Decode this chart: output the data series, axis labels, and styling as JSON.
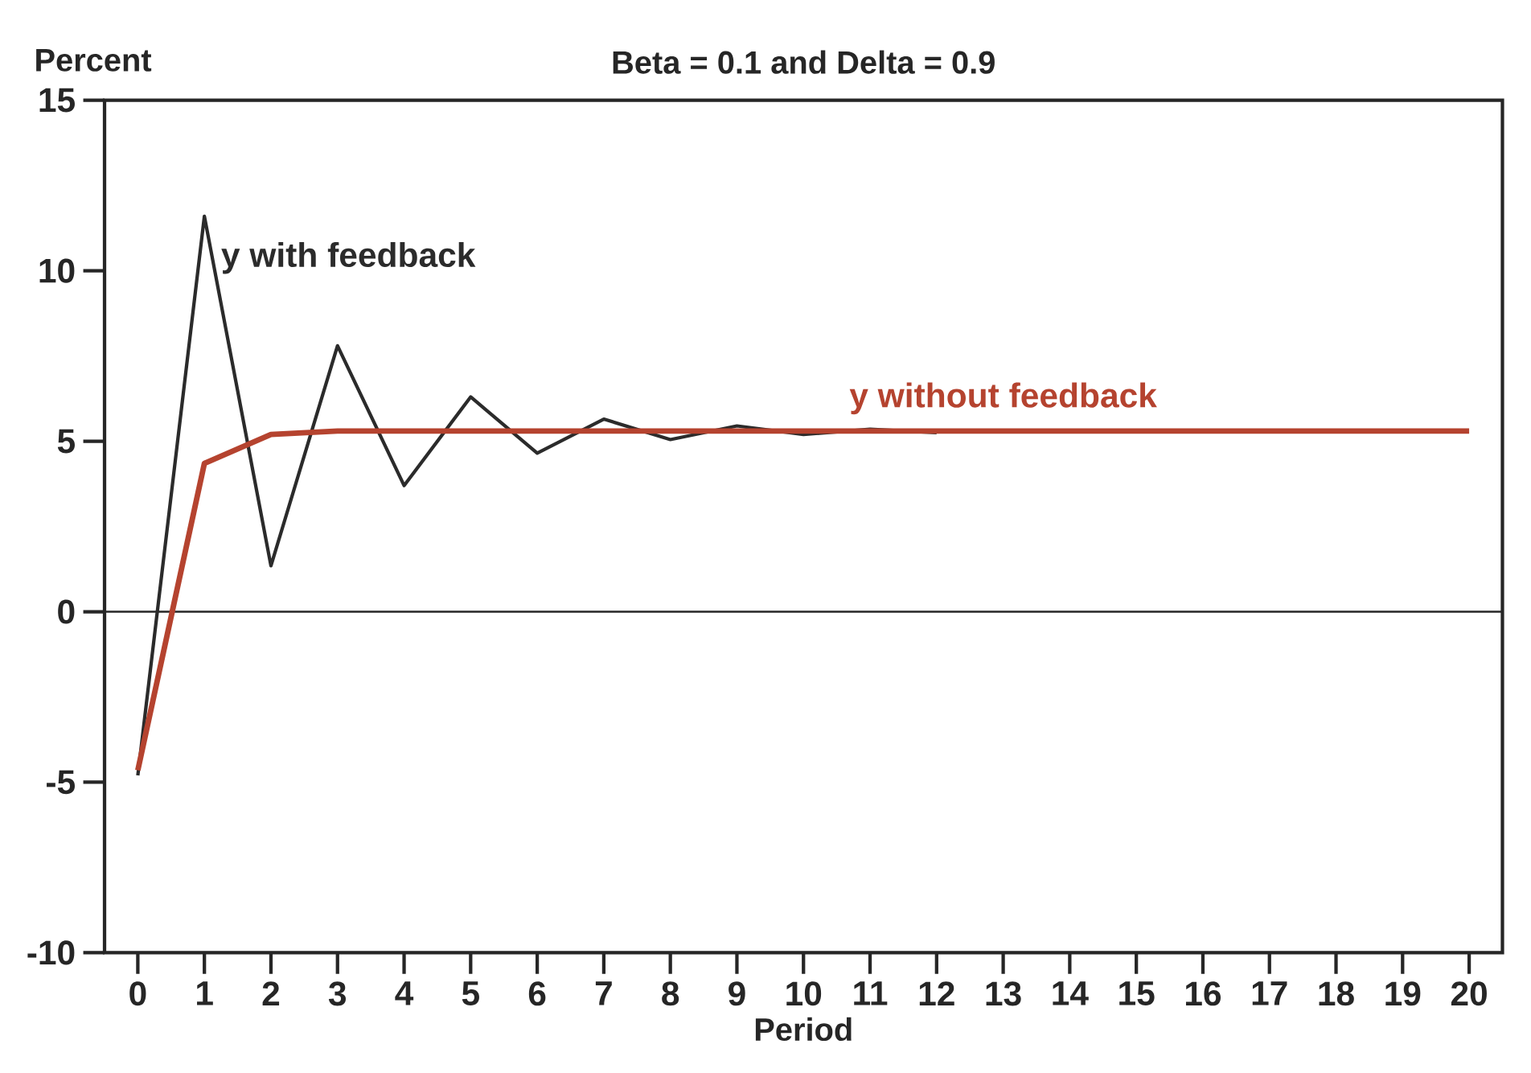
{
  "chart_data": {
    "type": "line",
    "title": "Beta = 0.1 and Delta = 0.9",
    "xlabel": "Period",
    "ylabel": "Percent",
    "x": [
      0,
      1,
      2,
      3,
      4,
      5,
      6,
      7,
      8,
      9,
      10,
      11,
      12,
      13,
      14,
      15,
      16,
      17,
      18,
      19,
      20
    ],
    "series": [
      {
        "name": "y with feedback",
        "color": "#2b2b2b",
        "values": [
          -4.8,
          11.6,
          1.35,
          7.8,
          3.7,
          6.3,
          4.65,
          5.65,
          5.05,
          5.45,
          5.2,
          5.35,
          5.25,
          null,
          null,
          null,
          null,
          null,
          null,
          null,
          null
        ]
      },
      {
        "name": "y without feedback",
        "color": "#b5432f",
        "values": [
          -4.65,
          4.35,
          5.2,
          5.3,
          5.3,
          5.3,
          5.3,
          5.3,
          5.3,
          5.3,
          5.3,
          5.3,
          5.3,
          5.3,
          5.3,
          5.3,
          5.3,
          5.3,
          5.3,
          5.3,
          5.3
        ]
      }
    ],
    "xlim": [
      -0.5,
      20.5
    ],
    "xticks": [
      0,
      1,
      2,
      3,
      4,
      5,
      6,
      7,
      8,
      9,
      10,
      11,
      12,
      13,
      14,
      15,
      16,
      17,
      18,
      19,
      20
    ],
    "ylim": [
      -10,
      15
    ],
    "yticks": [
      -10,
      -5,
      0,
      5,
      10,
      15
    ],
    "ref_lines": [
      {
        "axis": "y",
        "value": 0
      }
    ],
    "grid": false,
    "legend": false,
    "marker": "none",
    "line_style": "solid"
  }
}
